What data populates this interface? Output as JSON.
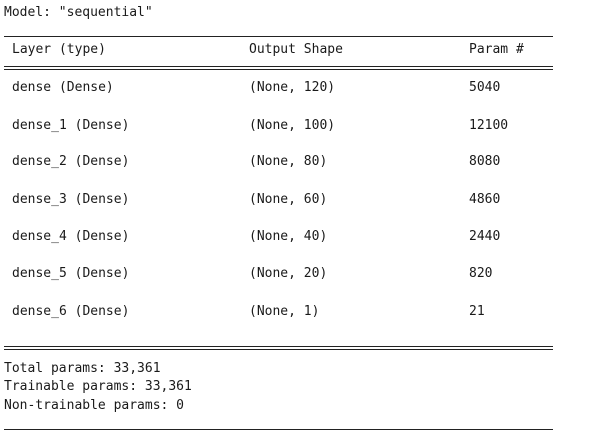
{
  "model_line": "Model: \"sequential\"",
  "headers": {
    "layer": "Layer (type)",
    "output_shape": "Output Shape",
    "params": "Param #"
  },
  "rows": [
    {
      "layer": "dense (Dense)",
      "shape": "(None, 120)",
      "params": "5040"
    },
    {
      "layer": "dense_1 (Dense)",
      "shape": "(None, 100)",
      "params": "12100"
    },
    {
      "layer": "dense_2 (Dense)",
      "shape": "(None, 80)",
      "params": "8080"
    },
    {
      "layer": "dense_3 (Dense)",
      "shape": "(None, 60)",
      "params": "4860"
    },
    {
      "layer": "dense_4 (Dense)",
      "shape": "(None, 40)",
      "params": "2440"
    },
    {
      "layer": "dense_5 (Dense)",
      "shape": "(None, 20)",
      "params": "820"
    },
    {
      "layer": "dense_6 (Dense)",
      "shape": "(None, 1)",
      "params": "21"
    }
  ],
  "summary": {
    "total": "Total params: 33,361",
    "trainable": "Trainable params: 33,361",
    "non_trainable": "Non-trainable params: 0"
  }
}
